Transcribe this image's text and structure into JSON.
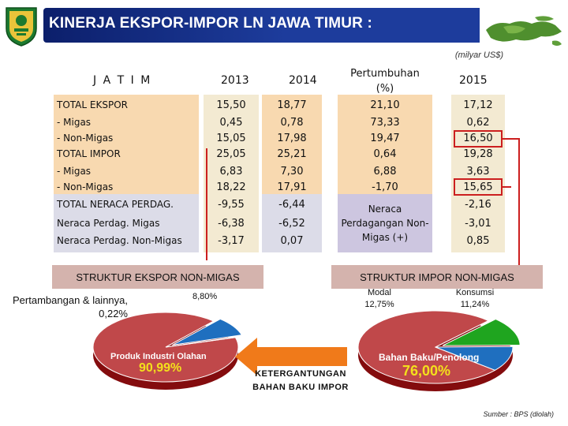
{
  "title": "KINERJA EKSPOR-IMPOR LN JAWA TIMUR :",
  "unit": "(milyar US$)",
  "table": {
    "headers": [
      "J A T I M",
      "2013",
      "2014",
      "Pertumbuhan (%)",
      "2015"
    ],
    "labels": [
      "TOTAL EKSPOR",
      "- Migas",
      "- Non-Migas",
      "TOTAL IMPOR",
      "- Migas",
      "- Non-Migas",
      "TOTAL NERACA PERDAG.",
      "Neraca Perdag. Migas",
      "Neraca Perdag. Non-Migas"
    ],
    "col2013": [
      "15,50",
      "0,45",
      "15,05",
      "25,05",
      "6,83",
      "18,22",
      "-9,55",
      "-6,38",
      "-3,17"
    ],
    "col2014": [
      "18,77",
      "0,78",
      "17,98",
      "25,21",
      "7,30",
      "17,91",
      "-6,44",
      "-6,52",
      "0,07"
    ],
    "growth": [
      "21,10",
      "73,33",
      "19,47",
      "0,64",
      "6,88",
      "-1,70"
    ],
    "growth_note": "Neraca Perdagangan Non-Migas (+)",
    "col2015": [
      "17,12",
      "0,62",
      "16,50",
      "19,28",
      "3,63",
      "15,65",
      "-2,16",
      "-3,01",
      "0,85"
    ]
  },
  "export_structure": {
    "banner": "STRUKTUR EKSPOR NON-MIGAS",
    "slices": [
      {
        "label": "Produk Industri Olahan",
        "value": "90,99%",
        "share": 90.99,
        "color": "#c0484a"
      },
      {
        "label": "8,80%",
        "value": "8,80%",
        "share": 8.8,
        "color": "#1f6fbf"
      },
      {
        "label": "Pertambangan & lainnya, 0,22%",
        "value": "0,22%",
        "share": 0.22,
        "color": "#e6e6e6"
      }
    ]
  },
  "import_structure": {
    "banner": "STRUKTUR IMPOR NON-MIGAS",
    "slices": [
      {
        "label": "Bahan Baku/Penolong",
        "value": "76,00%",
        "share": 76.0,
        "color": "#c0484a"
      },
      {
        "label": "Modal 12,75%",
        "value": "12,75%",
        "share": 12.75,
        "color": "#1fa51f"
      },
      {
        "label": "Konsumsi 11,24%",
        "value": "11,24%",
        "share": 11.24,
        "color": "#1f6fbf"
      }
    ]
  },
  "dependency": "KETERGANTUNGAN BAHAN BAKU IMPOR",
  "source": "Sumber : BPS (diolah)",
  "colors": {
    "accent_red": "#cc1f1f",
    "header_bg": "#1d3c9c",
    "row_a": "#f6d9b5",
    "row_b": "#d8d8e8",
    "row_c": "#f3ecd6",
    "arrow": "#f07a1a",
    "banner": "#d4b3ad",
    "lavender": "#cdc6e0"
  }
}
